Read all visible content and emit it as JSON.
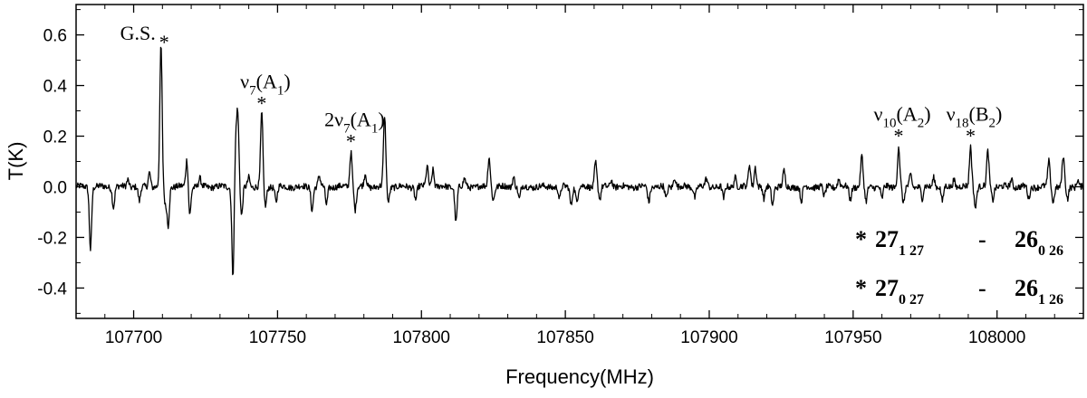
{
  "chart_data": {
    "type": "line",
    "title": "",
    "xlabel": "Frequency(MHz)",
    "ylabel": "T(K)",
    "xlim": [
      107680,
      108030
    ],
    "ylim": [
      -0.52,
      0.72
    ],
    "grid": false,
    "x_ticks": [
      107700,
      107750,
      107800,
      107850,
      107900,
      107950,
      108000
    ],
    "x_tick_labels": [
      "107700",
      "107750",
      "107800",
      "107850",
      "107900",
      "107950",
      "108000"
    ],
    "y_ticks": [
      -0.4,
      -0.2,
      0.0,
      0.2,
      0.4,
      0.6
    ],
    "y_tick_labels": [
      "-0.4",
      "-0.2",
      "0.0",
      "0.2",
      "0.4",
      "0.6"
    ],
    "series": [
      {
        "color": "#000000",
        "peaks": [
          {
            "x": 107685.0,
            "y": -0.245
          },
          {
            "x": 107693.0,
            "y": -0.08
          },
          {
            "x": 107698.0,
            "y": 0.03
          },
          {
            "x": 107702.0,
            "y": -0.06
          },
          {
            "x": 107705.5,
            "y": 0.06
          },
          {
            "x": 107709.5,
            "y": 0.56
          },
          {
            "x": 107711.0,
            "y": -0.07
          },
          {
            "x": 107712.0,
            "y": -0.15
          },
          {
            "x": 107718.5,
            "y": 0.11
          },
          {
            "x": 107719.5,
            "y": -0.11
          },
          {
            "x": 107723.0,
            "y": 0.03
          },
          {
            "x": 107734.5,
            "y": -0.35
          },
          {
            "x": 107735.5,
            "y": 0.17
          },
          {
            "x": 107736.2,
            "y": 0.26
          },
          {
            "x": 107737.5,
            "y": -0.12
          },
          {
            "x": 107740.0,
            "y": 0.04
          },
          {
            "x": 107744.5,
            "y": 0.29
          },
          {
            "x": 107745.8,
            "y": -0.08
          },
          {
            "x": 107749.5,
            "y": -0.06
          },
          {
            "x": 107762.0,
            "y": -0.09
          },
          {
            "x": 107764.5,
            "y": 0.04
          },
          {
            "x": 107767.0,
            "y": -0.07
          },
          {
            "x": 107775.5,
            "y": 0.14
          },
          {
            "x": 107777.0,
            "y": -0.09
          },
          {
            "x": 107780.5,
            "y": 0.05
          },
          {
            "x": 107787.2,
            "y": 0.28
          },
          {
            "x": 107788.5,
            "y": -0.06
          },
          {
            "x": 107798.0,
            "y": -0.05
          },
          {
            "x": 107802.0,
            "y": 0.08
          },
          {
            "x": 107804.0,
            "y": 0.07
          },
          {
            "x": 107812.0,
            "y": -0.14
          },
          {
            "x": 107815.0,
            "y": 0.03
          },
          {
            "x": 107823.5,
            "y": 0.12
          },
          {
            "x": 107825.0,
            "y": -0.05
          },
          {
            "x": 107832.0,
            "y": 0.04
          },
          {
            "x": 107834.0,
            "y": -0.05
          },
          {
            "x": 107848.0,
            "y": -0.05
          },
          {
            "x": 107852.0,
            "y": -0.07
          },
          {
            "x": 107854.0,
            "y": -0.06
          },
          {
            "x": 107860.5,
            "y": 0.1
          },
          {
            "x": 107862.0,
            "y": -0.05
          },
          {
            "x": 107866.0,
            "y": 0.03
          },
          {
            "x": 107879.0,
            "y": -0.06
          },
          {
            "x": 107885.0,
            "y": -0.05
          },
          {
            "x": 107888.0,
            "y": 0.04
          },
          {
            "x": 107895.0,
            "y": -0.04
          },
          {
            "x": 107899.0,
            "y": 0.03
          },
          {
            "x": 107905.0,
            "y": -0.05
          },
          {
            "x": 107909.0,
            "y": 0.04
          },
          {
            "x": 107914.0,
            "y": 0.09
          },
          {
            "x": 107916.0,
            "y": 0.08
          },
          {
            "x": 107919.0,
            "y": -0.05
          },
          {
            "x": 107922.0,
            "y": -0.07
          },
          {
            "x": 107926.0,
            "y": 0.06
          },
          {
            "x": 107932.0,
            "y": -0.06
          },
          {
            "x": 107940.0,
            "y": -0.04
          },
          {
            "x": 107945.0,
            "y": 0.03
          },
          {
            "x": 107949.0,
            "y": -0.05
          },
          {
            "x": 107953.0,
            "y": 0.12
          },
          {
            "x": 107954.5,
            "y": -0.06
          },
          {
            "x": 107960.0,
            "y": -0.05
          },
          {
            "x": 107965.8,
            "y": 0.16
          },
          {
            "x": 107967.5,
            "y": -0.07
          },
          {
            "x": 107970.0,
            "y": 0.05
          },
          {
            "x": 107974.0,
            "y": -0.05
          },
          {
            "x": 107978.0,
            "y": 0.04
          },
          {
            "x": 107981.0,
            "y": -0.06
          },
          {
            "x": 107985.0,
            "y": 0.03
          },
          {
            "x": 107990.8,
            "y": 0.16
          },
          {
            "x": 107992.5,
            "y": -0.08
          },
          {
            "x": 107996.8,
            "y": 0.14
          },
          {
            "x": 107998.5,
            "y": -0.05
          },
          {
            "x": 108005.0,
            "y": 0.03
          },
          {
            "x": 108011.0,
            "y": -0.05
          },
          {
            "x": 108018.0,
            "y": 0.1
          },
          {
            "x": 108019.5,
            "y": -0.06
          },
          {
            "x": 108023.0,
            "y": 0.12
          },
          {
            "x": 108024.5,
            "y": -0.05
          },
          {
            "x": 108028.0,
            "y": 0.03
          }
        ]
      }
    ],
    "annotations": [
      {
        "name": "gs",
        "label": "G.S.",
        "x": 107709.5,
        "y": 0.56
      },
      {
        "name": "nu7",
        "base": "ν",
        "sub": "7",
        "mid": "(A",
        "sub2": "1",
        "tail": ")",
        "x": 107744.5,
        "y": 0.29
      },
      {
        "name": "2nu7",
        "base": "2ν",
        "sub": "7",
        "mid": "(A",
        "sub2": "1",
        "tail": ")",
        "x": 107775.5,
        "y": 0.14
      },
      {
        "name": "nu10",
        "base": "ν",
        "sub": "10",
        "mid": "(A",
        "sub2": "2",
        "tail": ")",
        "x": 107965.8,
        "y": 0.16
      },
      {
        "name": "nu18",
        "base": "ν",
        "sub": "18",
        "mid": "(B",
        "sub2": "2",
        "tail": ")",
        "x": 107990.8,
        "y": 0.16
      }
    ],
    "star": "*",
    "legend": [
      {
        "star": "*",
        "upper": "27",
        "upper_sub": "1 27",
        "dash": "-",
        "lower": "26",
        "lower_sub": "0 26"
      },
      {
        "star": "*",
        "upper": "27",
        "upper_sub": "0 27",
        "dash": "-",
        "lower": "26",
        "lower_sub": "1 26"
      }
    ]
  }
}
